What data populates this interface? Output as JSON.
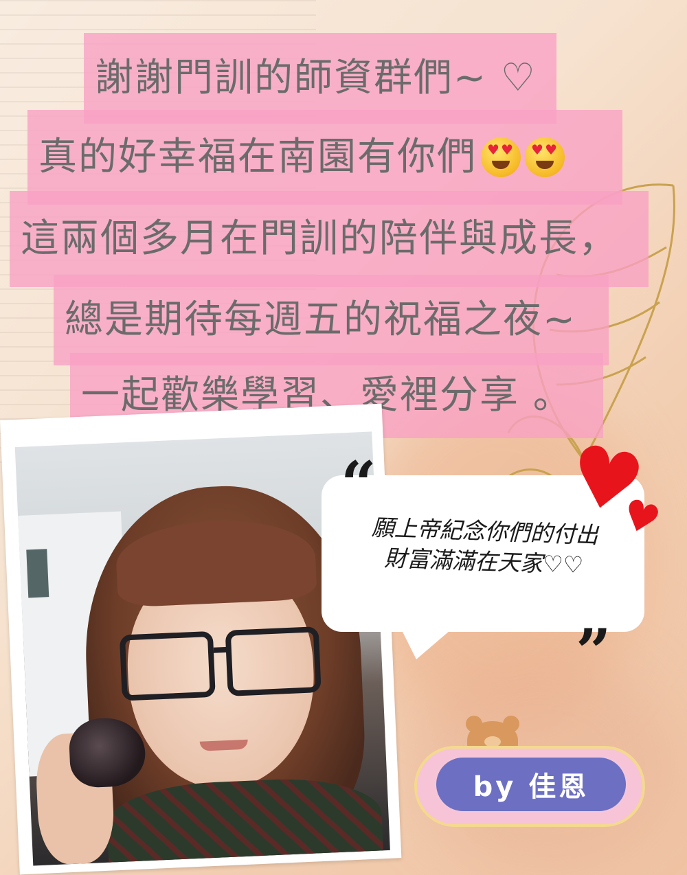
{
  "lines": [
    "謝謝門訓的師資群們~ ♡",
    "真的好幸福在南園有你們",
    "這兩個多月在門訓的陪伴與成長，",
    "總是期待每週五的祝福之夜~",
    "一起歡樂學習、愛裡分享 。"
  ],
  "emoji_name": "smiling-face-with-heart-eyes",
  "bubble": {
    "line1": "願上帝紀念你們的付出",
    "line2": "財富滿滿在天家♡♡"
  },
  "signature": "by 佳恩",
  "colors": {
    "highlight": "#f8a0c4",
    "badge": "#6c6fc2",
    "heart": "#e8141c"
  }
}
